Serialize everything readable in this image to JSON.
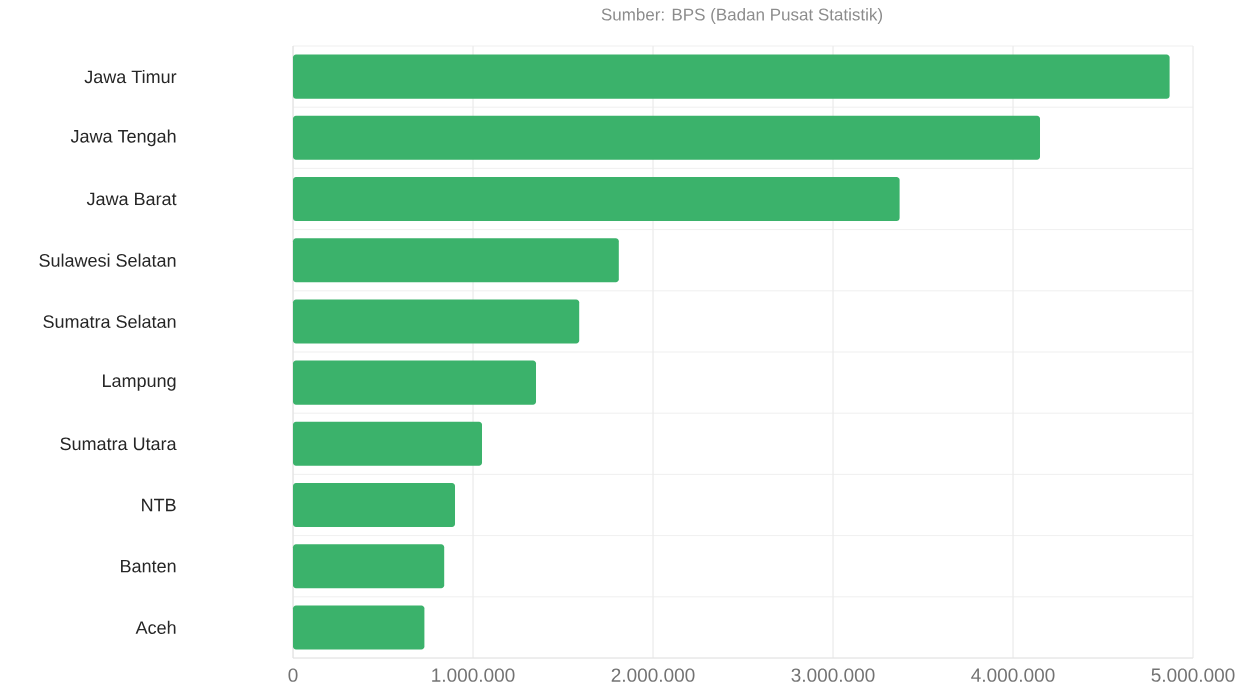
{
  "chart_data": {
    "type": "bar",
    "orientation": "horizontal",
    "subtitle": "Sumber: BPS (Badan Pusat Statistik)",
    "categories": [
      "Jawa Timur",
      "Jawa Tengah",
      "Jawa Barat",
      "Sulawesi Selatan",
      "Sumatra Selatan",
      "Lampung",
      "Sumatra Utara",
      "NTB",
      "Banten",
      "Aceh"
    ],
    "values": [
      4870000,
      4150000,
      3370000,
      1810000,
      1590000,
      1350000,
      1050000,
      900000,
      840000,
      730000
    ],
    "color": "#3bb26b",
    "xlim": [
      0,
      5000000
    ],
    "xticks": [
      {
        "value": 0,
        "label": "0"
      },
      {
        "value": 1000000,
        "label": "1.000.000"
      },
      {
        "value": 2000000,
        "label": "2.000.000"
      },
      {
        "value": 3000000,
        "label": "3.000.000"
      },
      {
        "value": 4000000,
        "label": "4.000.000"
      },
      {
        "value": 5000000,
        "label": "5.000.000"
      }
    ],
    "grid": true
  }
}
